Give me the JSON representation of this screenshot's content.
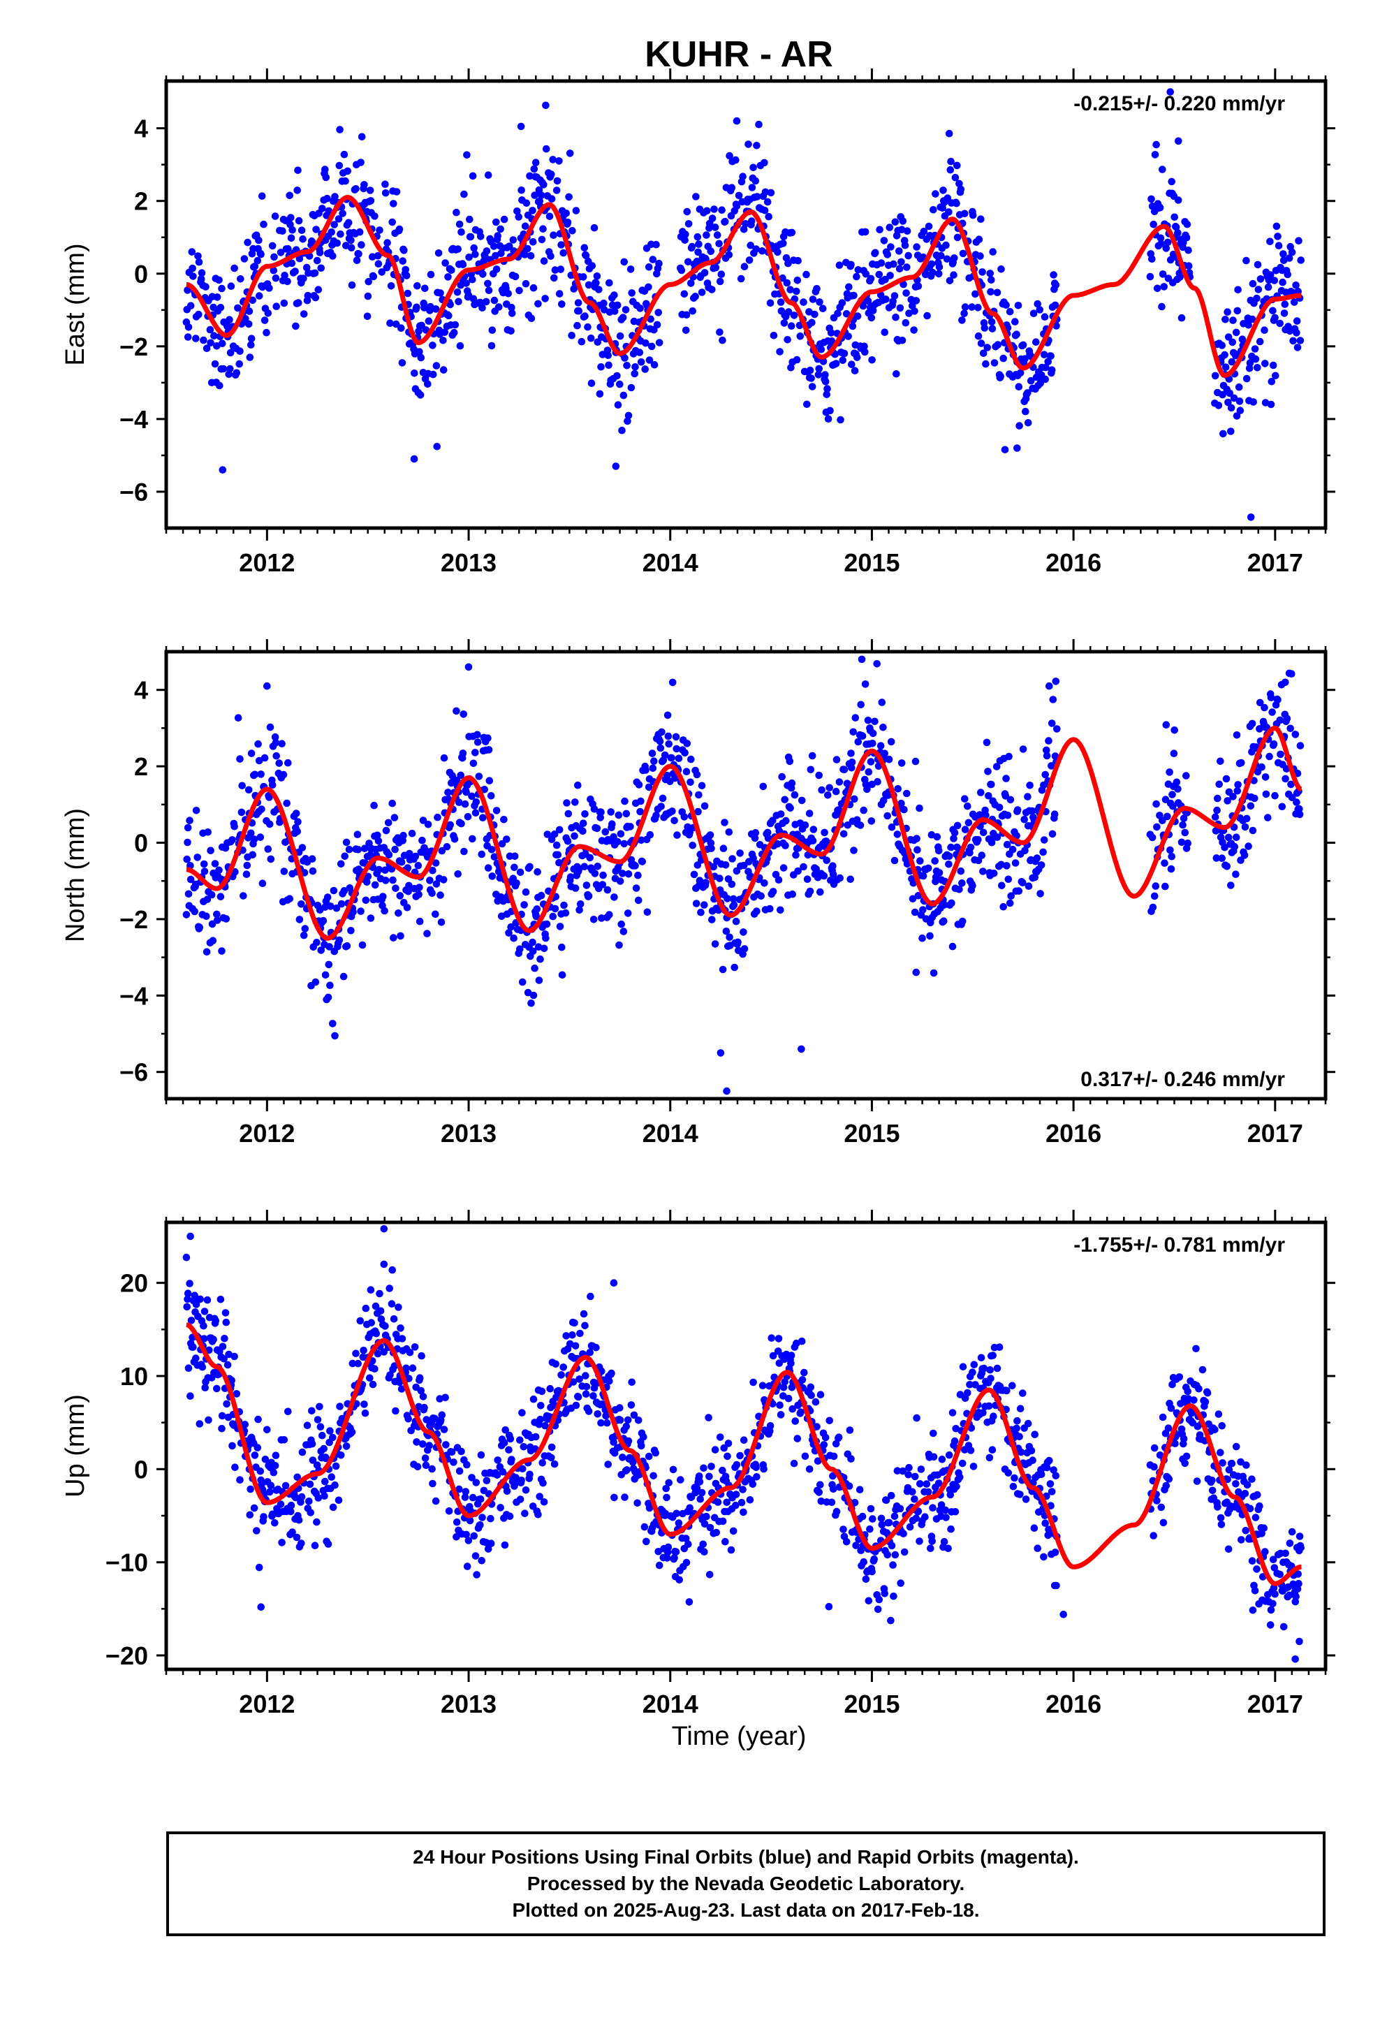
{
  "title": "KUHR - AR",
  "xlabel": "Time (year)",
  "colors": {
    "points": "#0000ff",
    "fit": "#ff0000",
    "axes": "#000000"
  },
  "caption": {
    "line1": "24 Hour Positions Using Final Orbits (blue) and Rapid Orbits (magenta).",
    "line2": "Processed by the Nevada Geodetic Laboratory.",
    "line3": "Plotted on 2025-Aug-23. Last data on 2017-Feb-18."
  },
  "chart_data": [
    {
      "type": "scatter",
      "panel": "east",
      "ylabel": "East (mm)",
      "rate_label": "-0.215+/- 0.220 mm/yr",
      "rate_position": "top-right",
      "xlim": [
        2011.5,
        2017.25
      ],
      "ylim": [
        -7,
        5.3
      ],
      "x_ticks": [
        2012,
        2013,
        2014,
        2015,
        2016,
        2017
      ],
      "y_ticks": [
        -6,
        -4,
        -2,
        0,
        2,
        4
      ],
      "grid": false,
      "data_range": [
        2011.6,
        2017.13
      ],
      "gaps": [
        [
          2013.95,
          2014.05
        ],
        [
          2015.92,
          2016.38
        ],
        [
          2016.58,
          2016.7
        ]
      ],
      "trend": {
        "name": "fit",
        "type": "line",
        "x": [
          2011.6,
          2011.8,
          2012.0,
          2012.2,
          2012.4,
          2012.6,
          2012.75,
          2013.0,
          2013.2,
          2013.4,
          2013.6,
          2013.75,
          2014.0,
          2014.2,
          2014.4,
          2014.6,
          2014.75,
          2015.0,
          2015.2,
          2015.4,
          2015.6,
          2015.75,
          2016.0,
          2016.2,
          2016.45,
          2016.6,
          2016.75,
          2017.0,
          2017.13
        ],
        "y": [
          -0.3,
          -1.7,
          0.2,
          0.6,
          2.1,
          0.5,
          -1.9,
          0.1,
          0.4,
          1.9,
          -0.8,
          -2.2,
          -0.3,
          0.3,
          1.7,
          -0.8,
          -2.3,
          -0.5,
          -0.1,
          1.5,
          -1.1,
          -2.6,
          -0.6,
          -0.3,
          1.3,
          -0.4,
          -2.8,
          -0.7,
          -0.6
        ]
      },
      "seasonal": {
        "period": 1.0,
        "amplitude": 1.0,
        "phase_peak": 0.4,
        "noise_sd": 0.95,
        "mean": -0.1
      },
      "outliers": [
        [
          2011.78,
          -5.4
        ],
        [
          2012.73,
          -5.1
        ],
        [
          2013.73,
          -5.3
        ],
        [
          2015.72,
          -4.8
        ],
        [
          2016.88,
          -6.7
        ],
        [
          2013.26,
          4.05
        ],
        [
          2014.33,
          4.2
        ],
        [
          2016.52,
          3.65
        ],
        [
          2016.48,
          5.0
        ]
      ]
    },
    {
      "type": "scatter",
      "panel": "north",
      "ylabel": "North (mm)",
      "rate_label": "0.317+/- 0.246 mm/yr",
      "rate_position": "bottom-right",
      "xlim": [
        2011.5,
        2017.25
      ],
      "ylim": [
        -6.7,
        5.0
      ],
      "x_ticks": [
        2012,
        2013,
        2014,
        2015,
        2016,
        2017
      ],
      "y_ticks": [
        -6,
        -4,
        -2,
        0,
        2,
        4
      ],
      "grid": false,
      "data_range": [
        2011.6,
        2017.13
      ],
      "gaps": [
        [
          2015.92,
          2016.38
        ],
        [
          2016.58,
          2016.7
        ]
      ],
      "trend": {
        "name": "fit",
        "type": "line",
        "x": [
          2011.6,
          2011.75,
          2012.0,
          2012.3,
          2012.55,
          2012.75,
          2013.0,
          2013.3,
          2013.55,
          2013.75,
          2014.0,
          2014.3,
          2014.55,
          2014.75,
          2015.0,
          2015.3,
          2015.55,
          2015.75,
          2016.0,
          2016.3,
          2016.55,
          2016.75,
          2017.0,
          2017.13
        ],
        "y": [
          -0.7,
          -1.2,
          1.4,
          -2.5,
          -0.4,
          -0.9,
          1.7,
          -2.3,
          -0.1,
          -0.5,
          2.0,
          -1.9,
          0.2,
          -0.3,
          2.4,
          -1.6,
          0.6,
          0.0,
          2.7,
          -1.4,
          0.9,
          0.4,
          3.0,
          1.4
        ]
      },
      "seasonal": {
        "period": 1.0,
        "amplitude": 1.2,
        "phase_peak": 0.0,
        "noise_sd": 0.9,
        "mean": 0.0
      },
      "outliers": [
        [
          2014.28,
          -6.5
        ],
        [
          2014.25,
          -5.5
        ],
        [
          2014.65,
          -5.4
        ],
        [
          2013.31,
          -4.2
        ],
        [
          2013.0,
          4.6
        ],
        [
          2014.95,
          4.8
        ],
        [
          2012.0,
          4.1
        ],
        [
          2017.05,
          4.2
        ]
      ]
    },
    {
      "type": "scatter",
      "panel": "up",
      "ylabel": "Up (mm)",
      "rate_label": "-1.755+/- 0.781 mm/yr",
      "rate_position": "top-right",
      "xlim": [
        2011.5,
        2017.25
      ],
      "ylim": [
        -21.5,
        26.5
      ],
      "x_ticks": [
        2012,
        2013,
        2014,
        2015,
        2016,
        2017
      ],
      "y_ticks": [
        -20,
        -10,
        0,
        10,
        20
      ],
      "grid": false,
      "data_range": [
        2011.6,
        2017.13
      ],
      "gaps": [
        [
          2015.92,
          2016.38
        ]
      ],
      "trend": {
        "name": "fit",
        "type": "line",
        "x": [
          2011.6,
          2011.75,
          2012.0,
          2012.25,
          2012.58,
          2012.8,
          2013.0,
          2013.3,
          2013.58,
          2013.8,
          2014.0,
          2014.3,
          2014.58,
          2014.8,
          2015.0,
          2015.3,
          2015.58,
          2015.8,
          2016.0,
          2016.3,
          2016.58,
          2016.8,
          2017.0,
          2017.13
        ],
        "y": [
          15.5,
          11.0,
          -3.6,
          -0.5,
          13.8,
          4.0,
          -5.0,
          1.0,
          12.0,
          2.0,
          -7.0,
          -2.0,
          10.4,
          0.0,
          -8.5,
          -3.0,
          8.5,
          -2.0,
          -10.5,
          -6.0,
          6.8,
          -3.0,
          -12.3,
          -10.5
        ]
      },
      "seasonal": {
        "period": 1.0,
        "amplitude": 8.5,
        "phase_peak": 0.58,
        "noise_sd": 3.1,
        "mean": 2.0
      },
      "outliers": [
        [
          2011.62,
          25.0
        ],
        [
          2012.58,
          25.8
        ],
        [
          2012.58,
          22.0
        ],
        [
          2013.72,
          20.0
        ],
        [
          2011.97,
          -14.8
        ],
        [
          2015.95,
          -15.6
        ],
        [
          2017.1,
          -20.4
        ],
        [
          2017.12,
          -18.5
        ]
      ]
    }
  ]
}
